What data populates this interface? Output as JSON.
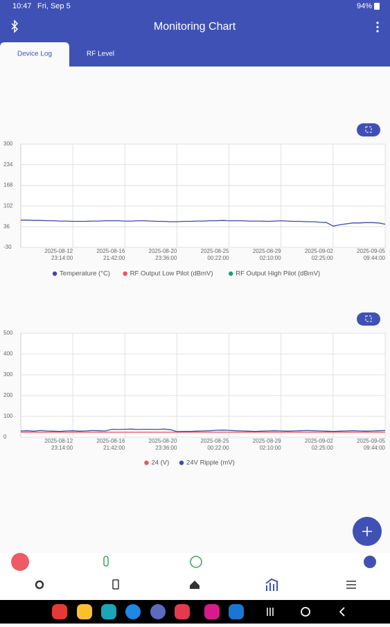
{
  "status_bar": {
    "time": "10:47",
    "date": "Fri, Sep 5",
    "battery": "94%"
  },
  "app_bar": {
    "title": "Monitoring Chart"
  },
  "tabs": [
    "Device Log",
    "RF Level"
  ],
  "chart_data": [
    {
      "type": "line",
      "xlim": [
        0,
        56
      ],
      "ylim": [
        -30,
        300
      ],
      "yticks": [
        -30,
        36,
        102,
        168,
        234,
        300
      ],
      "grid": true,
      "xticks": [
        {
          "value": 8,
          "label": [
            "2025-08-12",
            "23:14:00"
          ]
        },
        {
          "value": 16,
          "label": [
            "2025-08-16",
            "21:42:00"
          ]
        },
        {
          "value": 24,
          "label": [
            "2025-08-20",
            "23:36:00"
          ]
        },
        {
          "value": 32,
          "label": [
            "2025-08-25",
            "00:22:00"
          ]
        },
        {
          "value": 40,
          "label": [
            "2025-08-29",
            "02:10:00"
          ]
        },
        {
          "value": 48,
          "label": [
            "2025-09-02",
            "02:25:00"
          ]
        },
        {
          "value": 56,
          "label": [
            "2025-09-05",
            "09:44:00"
          ]
        }
      ],
      "series": [
        {
          "name": "Temperature (°C)",
          "color": "#3949ab",
          "values": [
            57,
            57,
            56,
            56,
            55,
            55,
            54,
            54,
            53,
            53,
            53,
            54,
            54,
            55,
            55,
            55,
            54,
            54,
            55,
            55,
            54,
            53,
            53,
            52,
            52,
            53,
            53,
            54,
            54,
            55,
            55,
            56,
            55,
            55,
            55,
            54,
            54,
            54,
            53,
            54,
            55,
            54,
            53,
            53,
            52,
            52,
            50,
            49,
            38,
            42,
            45,
            48,
            48,
            49,
            49,
            48,
            44
          ]
        },
        {
          "name": "RF Output Low Pilot (dBmV)",
          "color": "#f4515b",
          "values": [
            null,
            null,
            null,
            null,
            null,
            null,
            null,
            null,
            null,
            null,
            null,
            null,
            null,
            null,
            null,
            null,
            null,
            null,
            null,
            null,
            null,
            null,
            null,
            null,
            null,
            null,
            null,
            null,
            null,
            null,
            null,
            null,
            null,
            null,
            null,
            null,
            null,
            null,
            null,
            null,
            null,
            null,
            null,
            null,
            null,
            null,
            null,
            null,
            null,
            null,
            null,
            null,
            null,
            null,
            null,
            null,
            null
          ]
        },
        {
          "name": "RF Output High Pilot (dBmV)",
          "color": "#14a37f",
          "values": [
            null,
            null,
            null,
            null,
            null,
            null,
            null,
            null,
            null,
            null,
            null,
            null,
            null,
            null,
            null,
            null,
            null,
            null,
            null,
            null,
            null,
            null,
            null,
            null,
            null,
            null,
            null,
            null,
            null,
            null,
            null,
            null,
            null,
            null,
            null,
            null,
            null,
            null,
            null,
            null,
            null,
            null,
            null,
            null,
            null,
            null,
            null,
            null,
            null,
            null,
            null,
            null,
            null,
            null,
            null,
            null,
            null
          ]
        }
      ]
    },
    {
      "type": "line",
      "xlim": [
        0,
        56
      ],
      "ylim": [
        0,
        500
      ],
      "yticks": [
        0,
        100,
        200,
        300,
        400,
        500
      ],
      "grid": true,
      "xticks": [
        {
          "value": 8,
          "label": [
            "2025-08-12",
            "23:14:00"
          ]
        },
        {
          "value": 16,
          "label": [
            "2025-08-16",
            "21:42:00"
          ]
        },
        {
          "value": 24,
          "label": [
            "2025-08-20",
            "23:36:00"
          ]
        },
        {
          "value": 32,
          "label": [
            "2025-08-25",
            "00:22:00"
          ]
        },
        {
          "value": 40,
          "label": [
            "2025-08-29",
            "02:10:00"
          ]
        },
        {
          "value": 48,
          "label": [
            "2025-09-02",
            "02:25:00"
          ]
        },
        {
          "value": 56,
          "label": [
            "2025-09-05",
            "09:44:00"
          ]
        }
      ],
      "series": [
        {
          "name": "24 (V)",
          "color": "#f4515b",
          "values": [
            24,
            24,
            24,
            24,
            24,
            24,
            24,
            24,
            24,
            24,
            24,
            24,
            24,
            24,
            24,
            24,
            24,
            24,
            24,
            24,
            24,
            24,
            24,
            24,
            24,
            24,
            24,
            24,
            24,
            24,
            24,
            24,
            24,
            24,
            24,
            24,
            24,
            24,
            24,
            24,
            24,
            24,
            24,
            24,
            24,
            24,
            24,
            24,
            24,
            24,
            24,
            24,
            24,
            24,
            24,
            24,
            24
          ]
        },
        {
          "name": "24V Ripple (mV)",
          "color": "#3949ab",
          "values": [
            30,
            31,
            29,
            32,
            30,
            29,
            28,
            30,
            31,
            29,
            30,
            32,
            31,
            30,
            38,
            37,
            38,
            39,
            37,
            38,
            38,
            37,
            39,
            36,
            27,
            28,
            28,
            29,
            30,
            31,
            33,
            34,
            33,
            31,
            30,
            29,
            28,
            29,
            30,
            31,
            30,
            29,
            30,
            31,
            32,
            31,
            30,
            29,
            28,
            29,
            30,
            31,
            30,
            29,
            30,
            31,
            32
          ]
        }
      ]
    }
  ]
}
